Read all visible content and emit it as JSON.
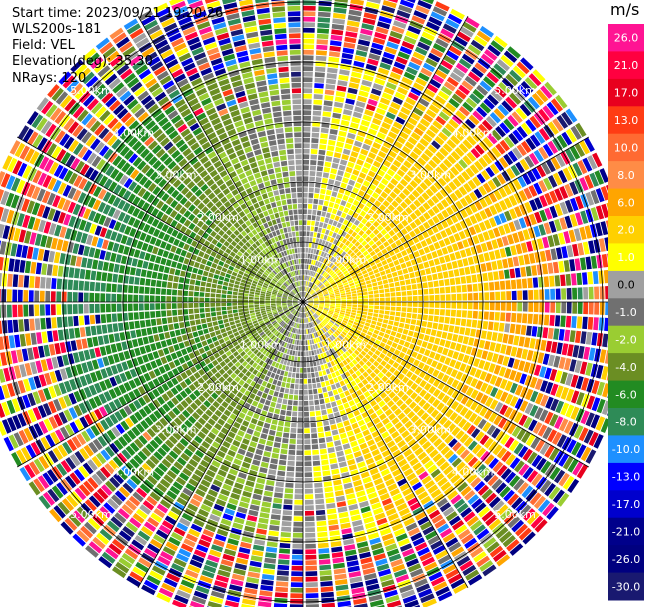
{
  "info": {
    "start_time": "Start time: 2023/09/21 19:20:26",
    "instrument": "WLS200s-181",
    "field": "Field: VEL",
    "elevation": "Elevation(deg): 35.30",
    "nrays": "NRays: 120"
  },
  "chart_data": {
    "type": "heatmap",
    "projection": "polar-ppi",
    "field": "VEL",
    "nrays": 120,
    "elevation_deg": 35.3,
    "range_rings_km": [
      1.0,
      2.0,
      3.0,
      4.0,
      5.0
    ],
    "ring_labels": [
      "1.00km",
      "2.00km",
      "3.00km",
      "4.00km",
      "5.00km"
    ],
    "max_range_km": 5.5,
    "spoke_angles_deg": [
      0,
      30,
      60,
      90,
      120,
      150,
      180,
      210,
      240,
      270,
      300,
      330
    ],
    "colorbar": {
      "unit": "m/s",
      "tick_labels": [
        "26.0",
        "21.0",
        "17.0",
        "13.0",
        "10.0",
        "8.0",
        "6.0",
        "2.0",
        "1.0",
        "0.0",
        "-1.0",
        "-2.0",
        "-4.0",
        "-6.0",
        "-8.0",
        "-10.0",
        "-13.0",
        "-17.0",
        "-21.0",
        "-26.0",
        "-30.0"
      ],
      "colors": [
        "#ff1493",
        "#ff0040",
        "#e8001e",
        "#ff3c14",
        "#ff6a32",
        "#ff8c46",
        "#ffa500",
        "#ffd000",
        "#ffff00",
        "#a0a0a0",
        "#707070",
        "#9acd32",
        "#6b8e23",
        "#228b22",
        "#2e8b57",
        "#1e90ff",
        "#0000ff",
        "#0000cd",
        "#00008b",
        "#000080",
        "#191970"
      ]
    }
  }
}
